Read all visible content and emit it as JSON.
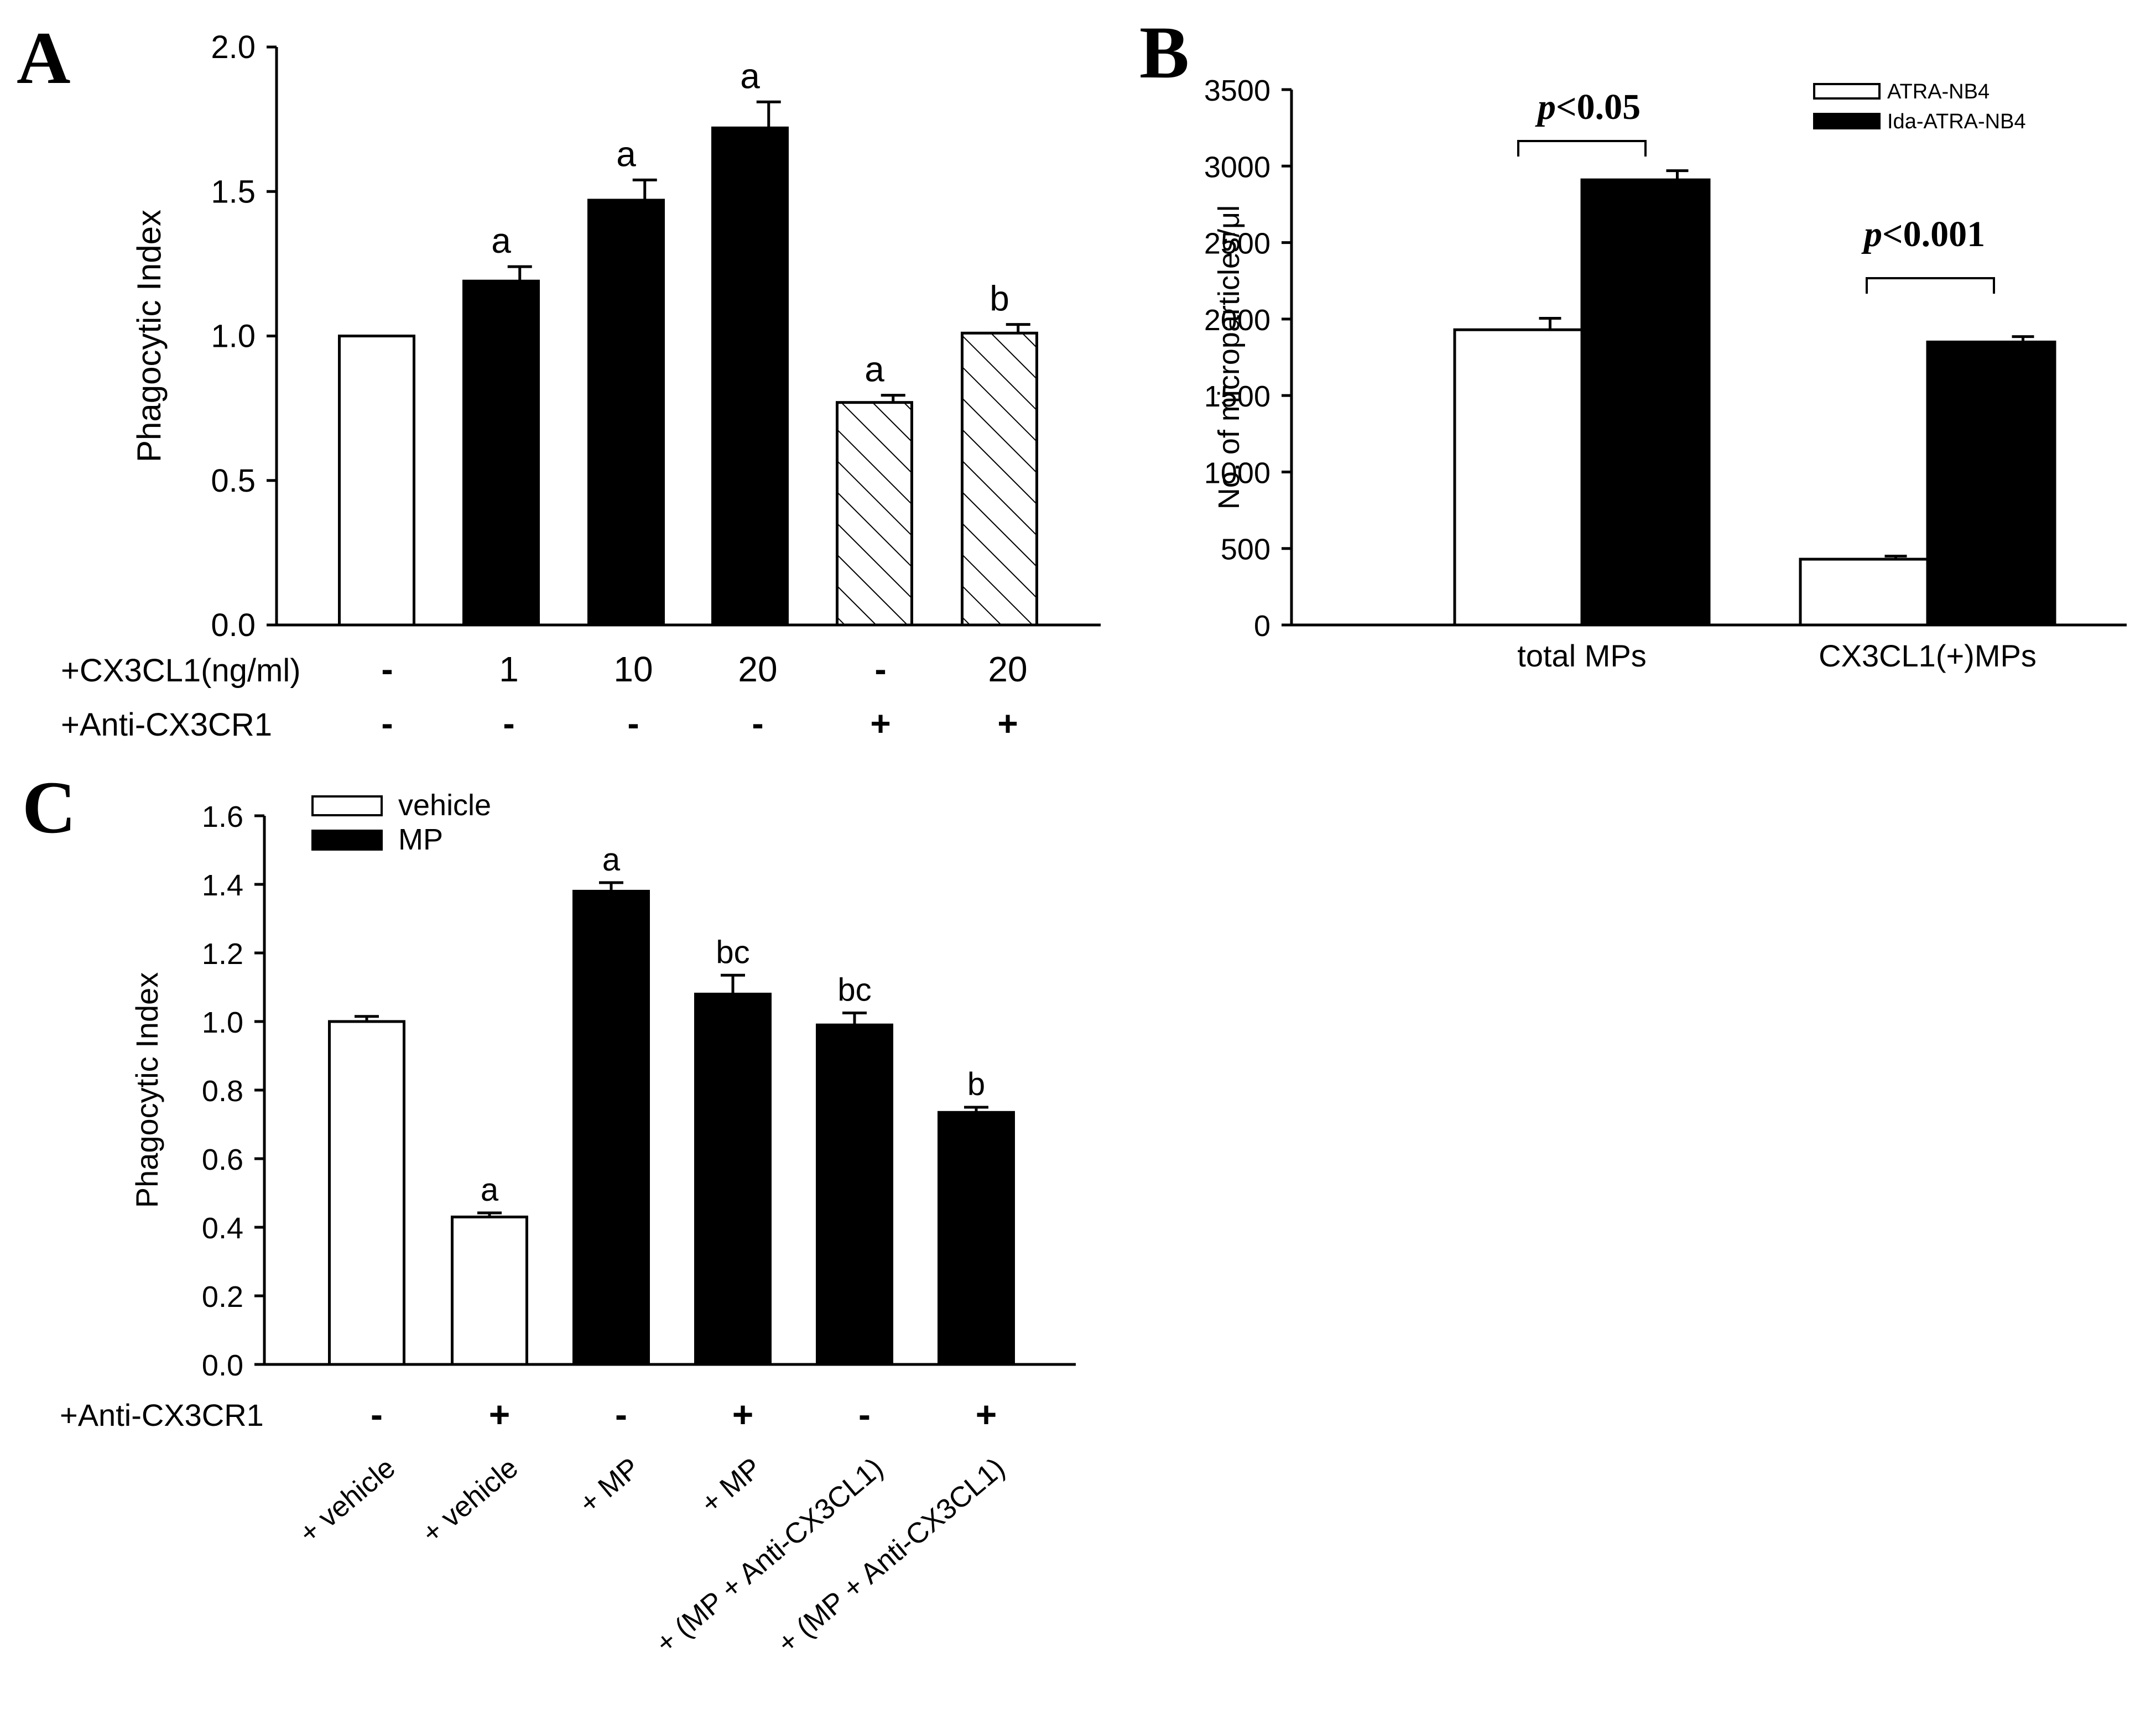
{
  "colors": {
    "filled": "#000000",
    "empty": "#ffffff",
    "axis": "#000000",
    "background": "#ffffff"
  },
  "chart_data": [
    {
      "panel": "A",
      "type": "bar",
      "ylabel": "Phagocytic Index",
      "ylim": [
        0,
        2.0
      ],
      "yticks": [
        "0.0",
        "0.5",
        "1.0",
        "1.5",
        "2.0"
      ],
      "values": [
        1.0,
        1.19,
        1.47,
        1.72,
        0.77,
        1.01
      ],
      "errors": [
        0.0,
        0.05,
        0.07,
        0.09,
        0.025,
        0.03
      ],
      "fills": [
        "empty",
        "filled",
        "filled",
        "filled",
        "hatched",
        "hatched"
      ],
      "annotations": [
        "",
        "a",
        "a",
        "a",
        "a",
        "b"
      ],
      "condition_rows": [
        {
          "label": "+CX3CL1(ng/ml)",
          "values": [
            "-",
            "1",
            "10",
            "20",
            "-",
            "20"
          ]
        },
        {
          "label": "+Anti-CX3CR1",
          "values": [
            "-",
            "-",
            "-",
            "-",
            "+",
            "+"
          ]
        }
      ]
    },
    {
      "panel": "B",
      "type": "bar",
      "ylabel": "No. of microparticles/μl",
      "ylim": [
        0,
        3500
      ],
      "yticks": [
        "0",
        "500",
        "1000",
        "1500",
        "2000",
        "2500",
        "3000",
        "3500"
      ],
      "categories": [
        "total MPs",
        "CX3CL1(+)MPs"
      ],
      "series": [
        {
          "name": "ATRA-NB4",
          "fill": "empty",
          "values": [
            1930,
            430
          ],
          "errors": [
            75,
            20
          ]
        },
        {
          "name": "Ida-ATRA-NB4",
          "fill": "filled",
          "values": [
            2910,
            1850
          ],
          "errors": [
            60,
            35
          ]
        }
      ],
      "legend_position": "top-right",
      "comparisons": [
        {
          "prefix": "p",
          "text": "<0.05"
        },
        {
          "prefix": "p",
          "text": "<0.001"
        }
      ]
    },
    {
      "panel": "C",
      "type": "bar",
      "ylabel": "Phagocytic Index",
      "ylim": [
        0,
        1.6
      ],
      "yticks": [
        "0.0",
        "0.2",
        "0.4",
        "0.6",
        "0.8",
        "1.0",
        "1.2",
        "1.4",
        "1.6"
      ],
      "values": [
        1.0,
        0.43,
        1.38,
        1.08,
        0.99,
        0.735
      ],
      "errors": [
        0.015,
        0.012,
        0.025,
        0.055,
        0.035,
        0.015
      ],
      "fills": [
        "empty",
        "empty",
        "filled",
        "filled",
        "filled",
        "filled"
      ],
      "annotations": [
        "",
        "a",
        "a",
        "bc",
        "bc",
        "b"
      ],
      "legend": [
        {
          "name": "vehicle",
          "fill": "empty"
        },
        {
          "name": "MP",
          "fill": "filled"
        }
      ],
      "condition_rows": [
        {
          "label": "+Anti-CX3CR1",
          "values": [
            "-",
            "+",
            "-",
            "+",
            "-",
            "+"
          ]
        }
      ],
      "categories": [
        "+ vehicle",
        "+ vehicle",
        "+ MP",
        "+ MP",
        "+ (MP + Anti-CX3CL1)",
        "+ (MP + Anti-CX3CL1)"
      ]
    }
  ]
}
